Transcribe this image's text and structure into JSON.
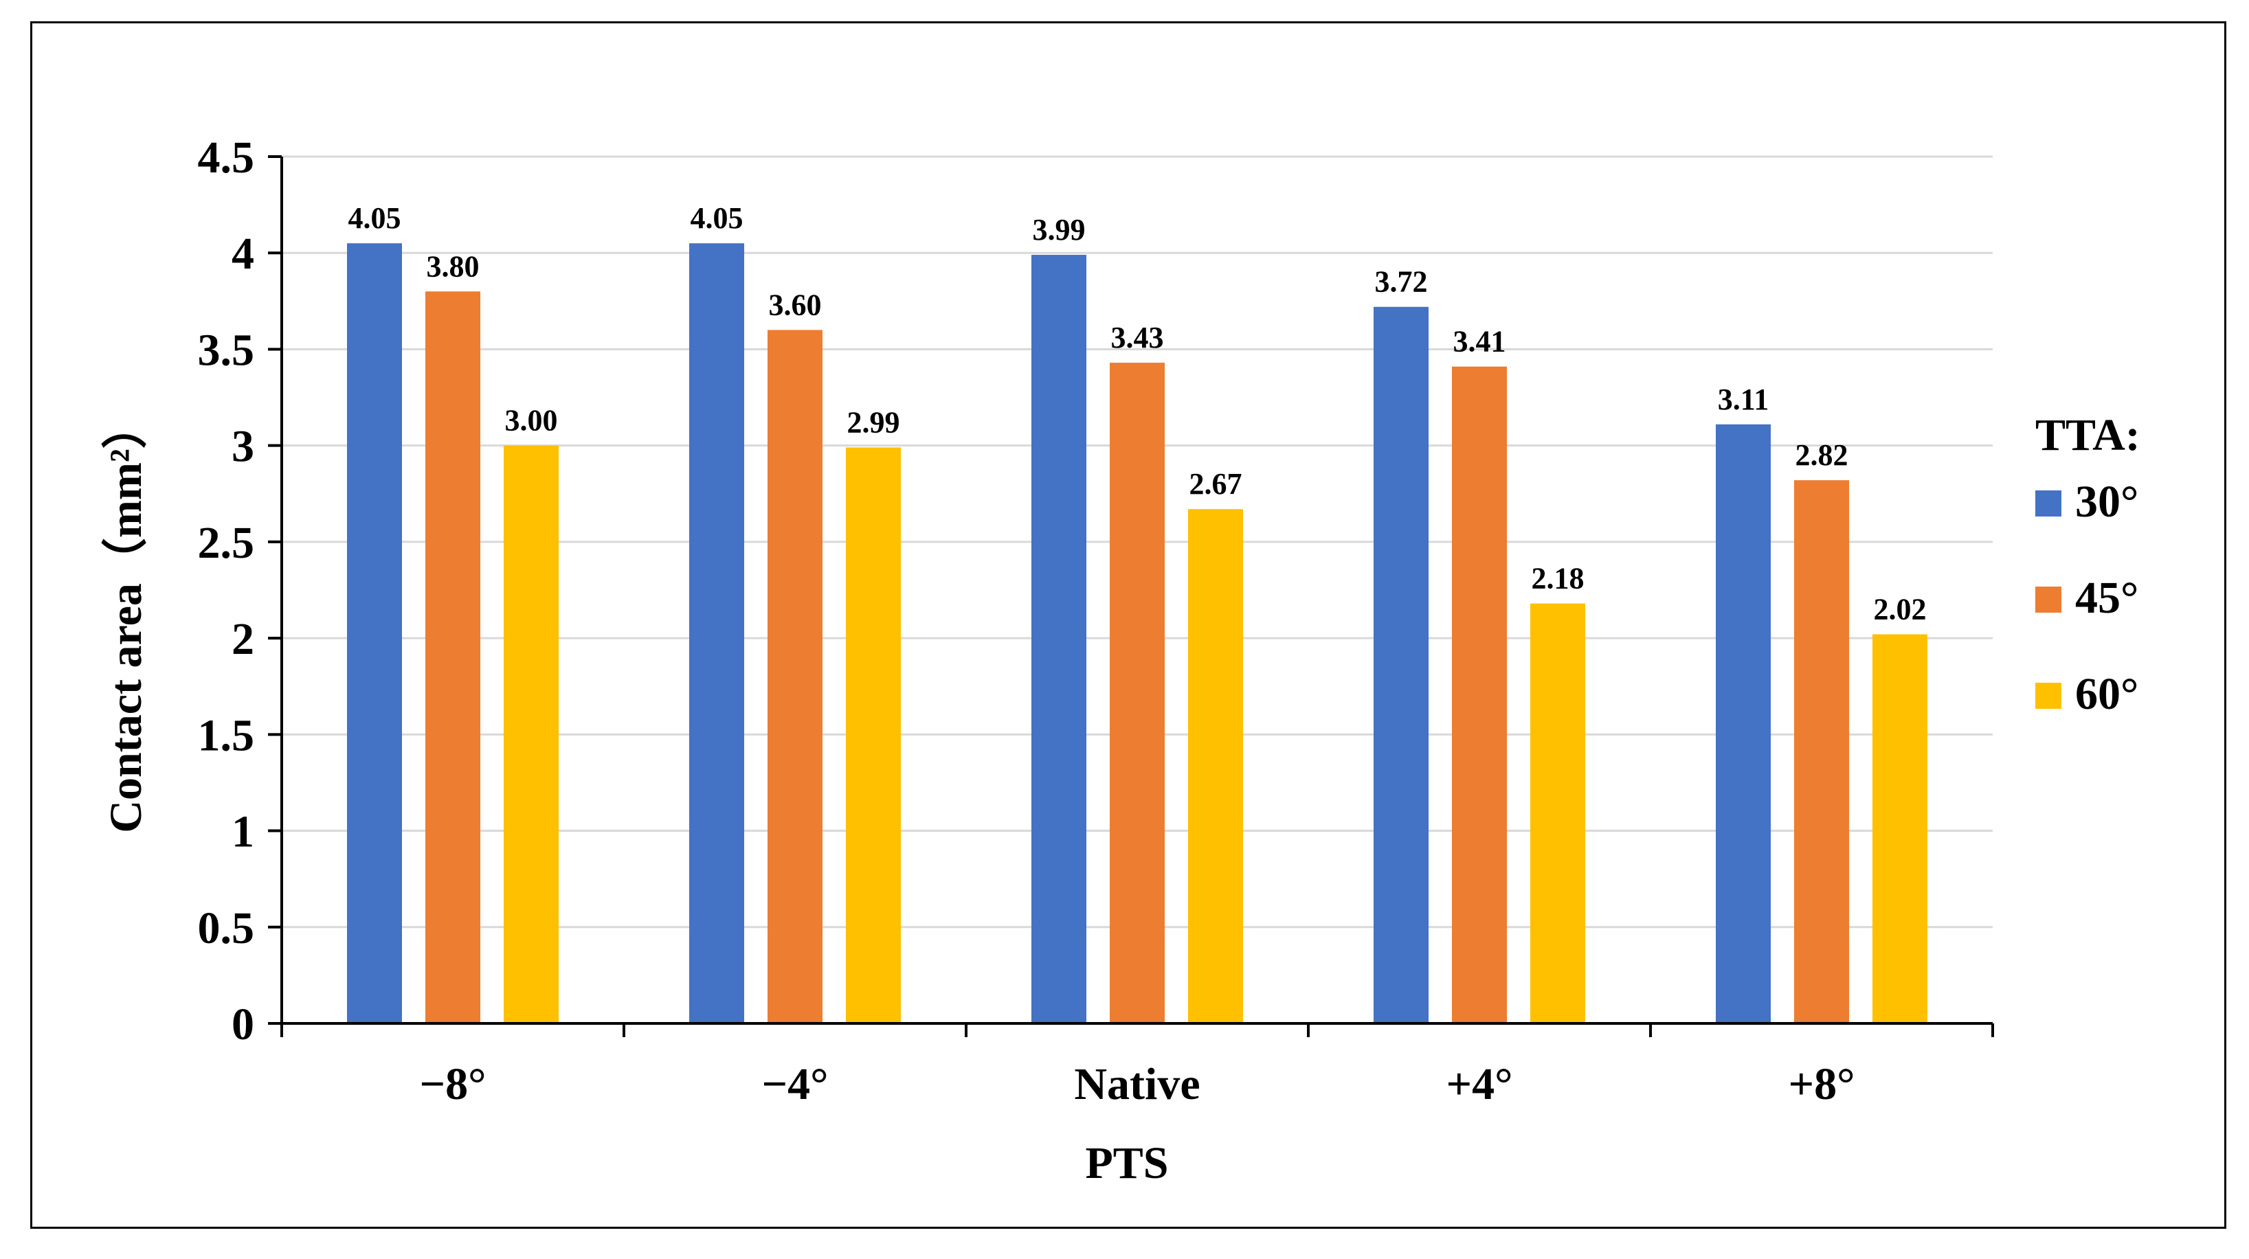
{
  "chart_data": {
    "type": "bar",
    "title": "",
    "xlabel": "PTS",
    "ylabel": "Contact area（mm²）",
    "categories": [
      "−8°",
      "−4°",
      "Native",
      "+4°",
      "+8°"
    ],
    "series": [
      {
        "name": "30°",
        "color": "#4472C4",
        "values": [
          4.05,
          4.05,
          3.99,
          3.72,
          3.11
        ],
        "labels": [
          "4.05",
          "4.05",
          "3.99",
          "3.72",
          "3.11"
        ]
      },
      {
        "name": "45°",
        "color": "#ED7D31",
        "values": [
          3.8,
          3.6,
          3.43,
          3.41,
          2.82
        ],
        "labels": [
          "3.80",
          "3.60",
          "3.43",
          "3.41",
          "2.82"
        ]
      },
      {
        "name": "60°",
        "color": "#FFC000",
        "values": [
          3.0,
          2.99,
          2.67,
          2.18,
          2.02
        ],
        "labels": [
          "3.00",
          "2.99",
          "2.67",
          "2.18",
          "2.02"
        ]
      }
    ],
    "ylim": [
      0,
      4.5
    ],
    "yticks": [
      0,
      0.5,
      1,
      1.5,
      2,
      2.5,
      3,
      3.5,
      4,
      4.5
    ],
    "ytick_labels": [
      "0",
      "0.5",
      "1",
      "1.5",
      "2",
      "2.5",
      "3",
      "3.5",
      "4",
      "4.5"
    ],
    "grid": true,
    "legend": {
      "title": "TTA:",
      "placement": "right"
    }
  }
}
